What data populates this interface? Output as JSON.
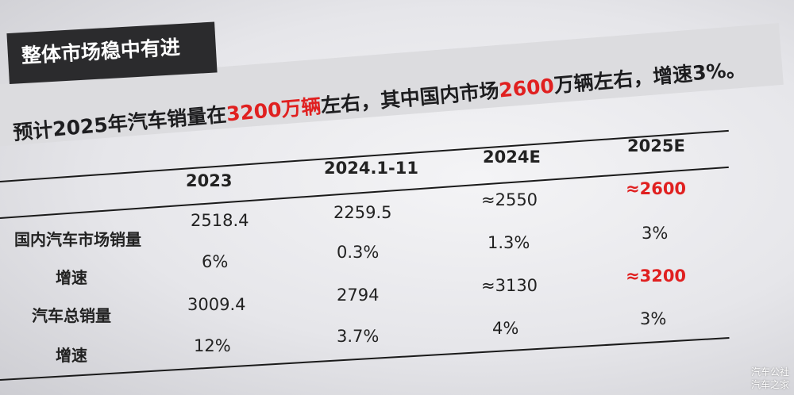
{
  "title": "整体市场稳中有进",
  "headline": {
    "p1": "预计2025年汽车销量在",
    "h1": "3200万辆",
    "p2": "左右，其中国内市场",
    "h2": "2600",
    "p3": "万辆左右，增速3%。"
  },
  "table": {
    "columns": [
      "2023",
      "2024.1-11",
      "2024E",
      "2025E"
    ],
    "rows": [
      {
        "label": "国内汽车市场销量",
        "values": [
          "2518.4",
          "2259.5",
          "≈2550",
          "≈2600"
        ]
      },
      {
        "label": "增速",
        "values": [
          "6%",
          "0.3%",
          "1.3%",
          "3%"
        ]
      },
      {
        "label": "汽车总销量",
        "values": [
          "3009.4",
          "2794",
          "≈3130",
          "≈3200"
        ]
      },
      {
        "label": "增速",
        "values": [
          "12%",
          "3.7%",
          "4%",
          "3%"
        ]
      }
    ]
  },
  "watermark": {
    "line1": "汽车公社",
    "line2": "汽车之家"
  },
  "colors": {
    "highlight": "#e02020",
    "title_bg": "#2b2b2d"
  }
}
